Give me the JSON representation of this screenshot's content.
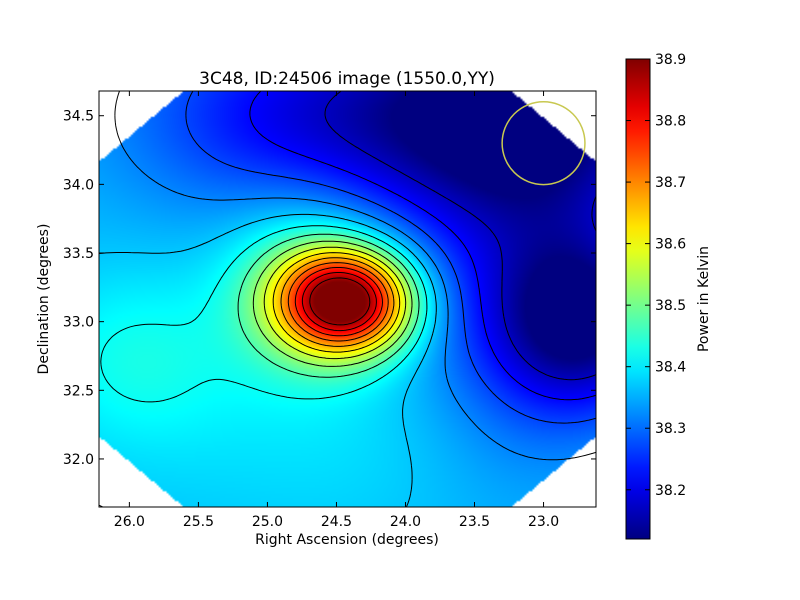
{
  "chart_data": {
    "type": "heatmap",
    "title": "3C48, ID:24506 image (1550.0,YY)",
    "xlabel": "Right Ascension (degrees)",
    "ylabel": "Declination (degrees)",
    "xlim": [
      26.22,
      22.62
    ],
    "ylim": [
      31.65,
      34.68
    ],
    "x_ticks": [
      26.0,
      25.5,
      25.0,
      24.5,
      24.0,
      23.5,
      23.0
    ],
    "x_tick_labels": [
      "26.0",
      "25.5",
      "25.0",
      "24.5",
      "24.0",
      "23.5",
      "23.0"
    ],
    "y_ticks": [
      32.0,
      32.5,
      33.0,
      33.5,
      34.0,
      34.5
    ],
    "y_tick_labels": [
      "32.0",
      "32.5",
      "33.0",
      "33.5",
      "34.0",
      "34.5"
    ],
    "colorbar": {
      "label": "Power in Kelvin",
      "range": [
        38.12,
        38.9
      ],
      "colormap": "jet",
      "ticks": [
        38.2,
        38.3,
        38.4,
        38.5,
        38.6,
        38.7,
        38.8,
        38.9
      ],
      "tick_labels": [
        "38.2",
        "38.3",
        "38.4",
        "38.5",
        "38.6",
        "38.7",
        "38.8",
        "38.9"
      ]
    },
    "field": {
      "background": 38.36,
      "peaks": [
        {
          "ra": 24.43,
          "dec": 33.15,
          "amplitude": 0.54,
          "sigma_ra": 0.33,
          "sigma_dec": 0.26
        },
        {
          "ra": 24.75,
          "dec": 33.25,
          "amplitude": 0.12,
          "sigma_ra": 0.4,
          "sigma_dec": 0.45
        },
        {
          "ra": 25.95,
          "dec": 32.75,
          "amplitude": 0.06,
          "sigma_ra": 0.5,
          "sigma_dec": 0.45
        },
        {
          "ra": 24.5,
          "dec": 32.2,
          "amplitude": 0.03,
          "sigma_ra": 1.2,
          "sigma_dec": 0.6
        }
      ],
      "troughs": [
        {
          "ra": 23.2,
          "dec": 34.5,
          "amplitude": 0.26,
          "sigma_ra": 0.9,
          "sigma_dec": 0.55
        },
        {
          "ra": 22.7,
          "dec": 33.0,
          "amplitude": 0.22,
          "sigma_ra": 0.45,
          "sigma_dec": 0.45
        },
        {
          "ra": 23.2,
          "dec": 33.2,
          "amplitude": 0.1,
          "sigma_ra": 0.55,
          "sigma_dec": 0.9
        },
        {
          "ra": 24.9,
          "dec": 34.5,
          "amplitude": 0.12,
          "sigma_ra": 0.8,
          "sigma_dec": 0.5
        }
      ],
      "contour_levels": [
        38.17,
        38.22,
        38.27,
        38.32,
        38.37,
        38.42,
        38.47,
        38.52,
        38.57,
        38.62,
        38.67,
        38.72,
        38.77,
        38.82,
        38.87
      ]
    },
    "beam_circle": {
      "ra": 23.0,
      "dec": 34.3,
      "radius_deg": 0.3,
      "color": "#c8c850"
    },
    "contour_color": "#000000"
  }
}
